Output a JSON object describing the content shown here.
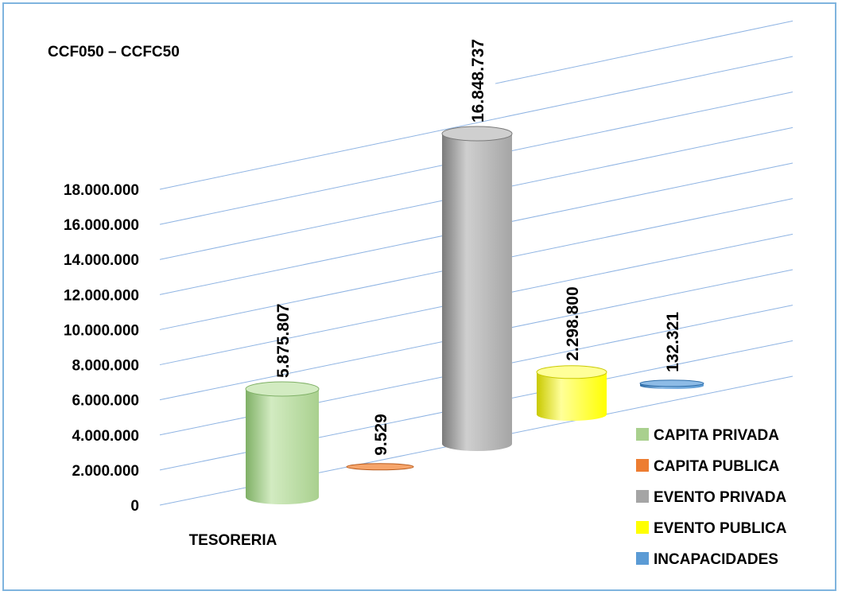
{
  "chart_data": {
    "type": "bar",
    "title": "CCF050 – CCFC50",
    "categories": [
      "TESORERIA"
    ],
    "series": [
      {
        "name": "CAPITA PRIVADA",
        "values": [
          5875807
        ],
        "label": "5.875.807",
        "color": "#a9d08e",
        "color_dark": "#7fb066",
        "color_light": "#d2ebc1"
      },
      {
        "name": "CAPITA PUBLICA",
        "values": [
          9529
        ],
        "label": "9.529",
        "color": "#ed7d31",
        "color_dark": "#b85a1c",
        "color_light": "#f6a56b"
      },
      {
        "name": "EVENTO PRIVADA",
        "values": [
          16848737
        ],
        "label": "16.848.737",
        "color": "#a5a5a5",
        "color_dark": "#7b7b7b",
        "color_light": "#cfcfcf"
      },
      {
        "name": "EVENTO PUBLICA",
        "values": [
          2298800
        ],
        "label": "2.298.800",
        "color": "#ffff00",
        "color_dark": "#c9c900",
        "color_light": "#ffff99"
      },
      {
        "name": "INCAPACIDADES",
        "values": [
          132321
        ],
        "label": "132.321",
        "color": "#5b9bd5",
        "color_dark": "#2e6da8",
        "color_light": "#8dbbe6"
      }
    ],
    "y_ticks": [
      "0",
      "2.000.000",
      "4.000.000",
      "6.000.000",
      "8.000.000",
      "10.000.000",
      "12.000.000",
      "14.000.000",
      "16.000.000",
      "18.000.000"
    ],
    "ylim": [
      0,
      18000000
    ],
    "grid": true,
    "legend_position": "bottom-right"
  }
}
